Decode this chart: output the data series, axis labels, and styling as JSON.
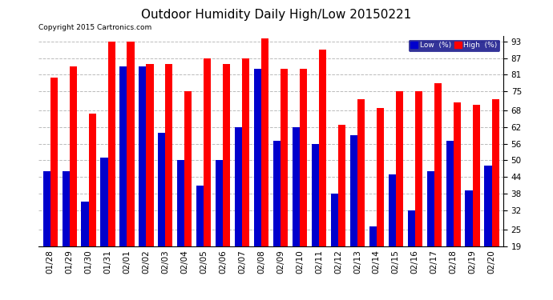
{
  "title": "Outdoor Humidity Daily High/Low 20150221",
  "copyright": "Copyright 2015 Cartronics.com",
  "dates": [
    "01/28",
    "01/29",
    "01/30",
    "01/31",
    "02/01",
    "02/02",
    "02/03",
    "02/04",
    "02/05",
    "02/06",
    "02/07",
    "02/08",
    "02/09",
    "02/10",
    "02/11",
    "02/12",
    "02/13",
    "02/14",
    "02/15",
    "02/16",
    "02/17",
    "02/18",
    "02/19",
    "02/20"
  ],
  "high": [
    80,
    84,
    67,
    93,
    93,
    85,
    85,
    75,
    87,
    85,
    87,
    94,
    83,
    83,
    90,
    63,
    72,
    69,
    75,
    75,
    78,
    71,
    70,
    72
  ],
  "low": [
    46,
    46,
    35,
    51,
    84,
    84,
    60,
    50,
    41,
    50,
    62,
    83,
    57,
    62,
    56,
    38,
    59,
    26,
    45,
    32,
    46,
    57,
    39,
    48
  ],
  "ylim_min": 19,
  "ylim_max": 95,
  "yticks": [
    19,
    25,
    32,
    38,
    44,
    50,
    56,
    62,
    68,
    75,
    81,
    87,
    93
  ],
  "bar_width": 0.38,
  "high_color": "#ff0000",
  "low_color": "#0000cc",
  "bg_color": "#ffffff",
  "grid_color": "#bbbbbb",
  "title_fontsize": 11,
  "legend_labels": [
    "Low  (%)",
    "High  (%)"
  ],
  "legend_colors": [
    "#0000cc",
    "#ff0000"
  ]
}
